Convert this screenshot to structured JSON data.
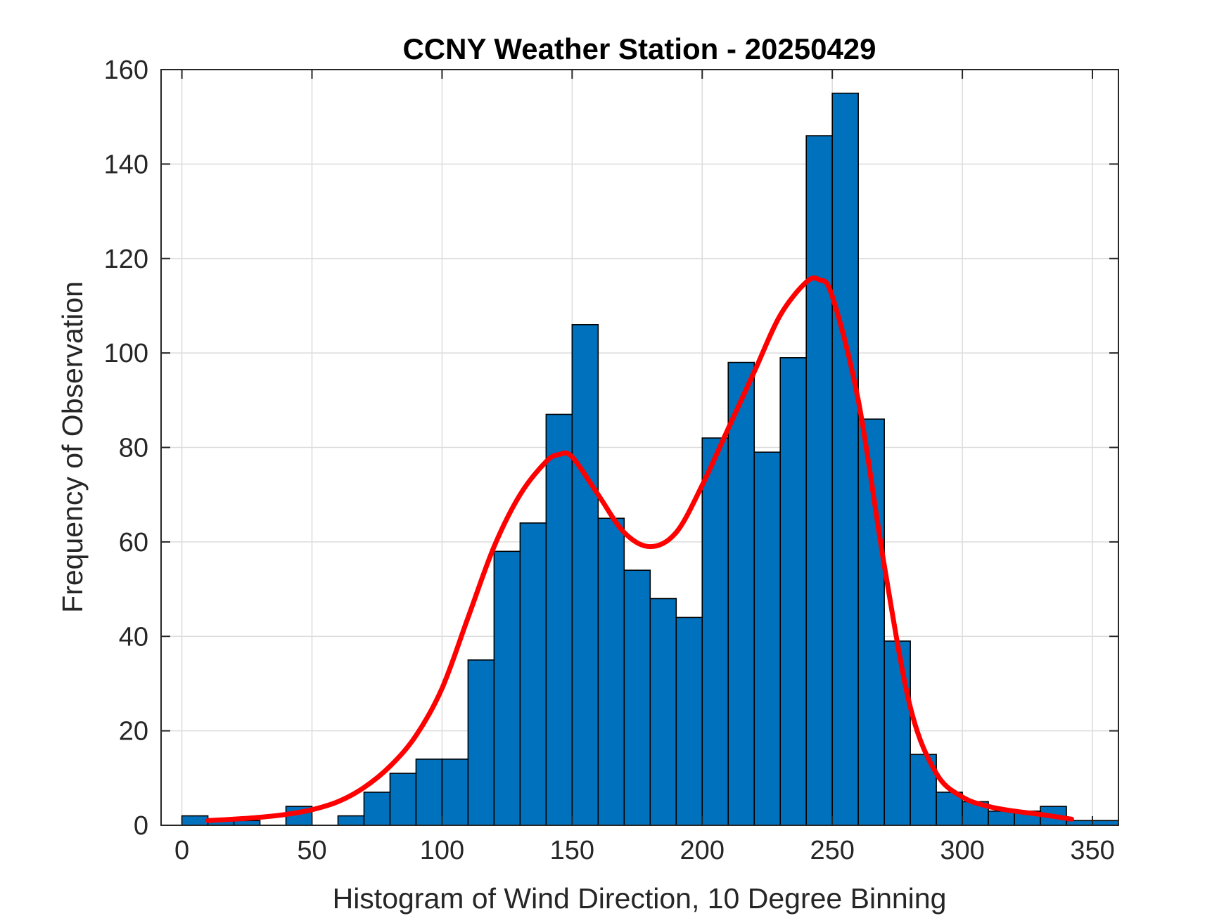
{
  "chart_data": {
    "type": "bar",
    "title": "CCNY Weather Station - 20250429",
    "xlabel": "Histogram of Wind Direction, 10 Degree Binning",
    "ylabel": "Frequency of Observation",
    "xlim": [
      -8,
      360
    ],
    "ylim": [
      0,
      160
    ],
    "xticks": [
      0,
      50,
      100,
      150,
      200,
      250,
      300,
      350
    ],
    "yticks": [
      0,
      20,
      40,
      60,
      80,
      100,
      120,
      140,
      160
    ],
    "grid": true,
    "bin_width": 10,
    "bin_edges": [
      0,
      10,
      20,
      30,
      40,
      50,
      60,
      70,
      80,
      90,
      100,
      110,
      120,
      130,
      140,
      150,
      160,
      170,
      180,
      190,
      200,
      210,
      220,
      230,
      240,
      250,
      260,
      270,
      280,
      290,
      300,
      310,
      320,
      330,
      340,
      350,
      360
    ],
    "values": [
      2,
      1,
      1,
      0,
      4,
      0,
      2,
      7,
      11,
      14,
      14,
      35,
      58,
      64,
      87,
      106,
      65,
      54,
      48,
      44,
      82,
      98,
      79,
      99,
      146,
      155,
      86,
      39,
      15,
      7,
      5,
      3,
      3,
      4,
      1,
      1
    ],
    "bar_color": "#0072BD",
    "fit_curve": {
      "color": "#FF0000",
      "x": [
        10,
        20,
        30,
        40,
        50,
        60,
        70,
        80,
        90,
        100,
        110,
        120,
        130,
        140,
        145,
        150,
        160,
        170,
        180,
        190,
        200,
        210,
        220,
        230,
        240,
        245,
        250,
        260,
        270,
        280,
        290,
        300,
        310,
        320,
        330,
        342
      ],
      "y": [
        1,
        1.3,
        1.7,
        2.3,
        3.3,
        5,
        8,
        12.5,
        19,
        29,
        44,
        59,
        70,
        77,
        78.5,
        78,
        70,
        62,
        59,
        62,
        72,
        84,
        96,
        108,
        115,
        115.5,
        112,
        90,
        55,
        25,
        11,
        6,
        4,
        3,
        2.3,
        1.3
      ]
    }
  }
}
